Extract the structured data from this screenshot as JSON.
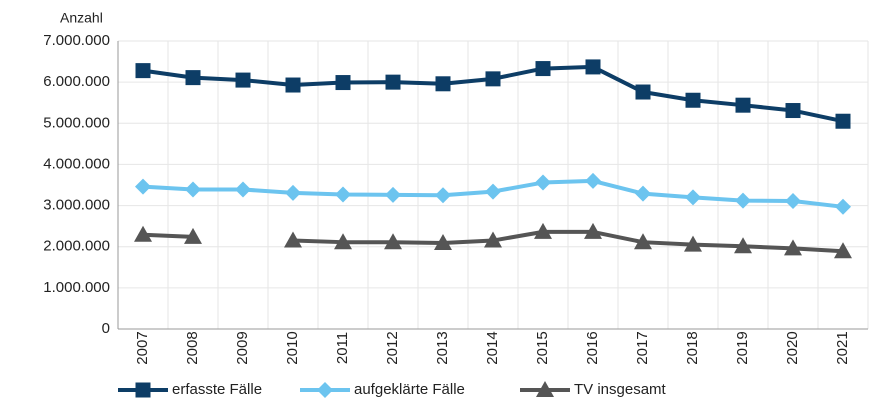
{
  "chart_data": {
    "type": "line",
    "y_axis_label": "Anzahl",
    "categories": [
      "2007",
      "2008",
      "2009",
      "2010",
      "2011",
      "2012",
      "2013",
      "2014",
      "2015",
      "2016",
      "2017",
      "2018",
      "2019",
      "2020",
      "2021"
    ],
    "series": [
      {
        "name": "erfasste Fälle",
        "color": "#0d3d66",
        "marker": "square",
        "values": [
          6280000,
          6110000,
          6050000,
          5930000,
          5990000,
          6000000,
          5960000,
          6080000,
          6330000,
          6370000,
          5760000,
          5560000,
          5440000,
          5310000,
          5050000
        ]
      },
      {
        "name": "aufgeklärte Fälle",
        "color": "#6cc4ef",
        "marker": "diamond",
        "values": [
          3460000,
          3390000,
          3390000,
          3310000,
          3270000,
          3260000,
          3250000,
          3340000,
          3560000,
          3600000,
          3290000,
          3200000,
          3120000,
          3110000,
          2970000
        ]
      },
      {
        "name": "TV insgesamt",
        "color": "#555555",
        "marker": "triangle",
        "values": [
          2290000,
          2240000,
          null,
          2150000,
          2110000,
          2110000,
          2090000,
          2150000,
          2360000,
          2360000,
          2110000,
          2050000,
          2010000,
          1960000,
          1890000
        ]
      }
    ],
    "ylim": [
      0,
      7000000
    ],
    "yticks": [
      0,
      {
        "value": 1000000,
        "label": "1.000.000"
      },
      {
        "value": 2000000,
        "label": "2.000.000"
      },
      {
        "value": 3000000,
        "label": "3.000.000"
      },
      {
        "value": 4000000,
        "label": "4.000.000"
      },
      {
        "value": 5000000,
        "label": "5.000.000"
      },
      {
        "value": 6000000,
        "label": "6.000.000"
      },
      {
        "value": 7000000,
        "label": "7.000.000"
      }
    ],
    "grid": true
  }
}
